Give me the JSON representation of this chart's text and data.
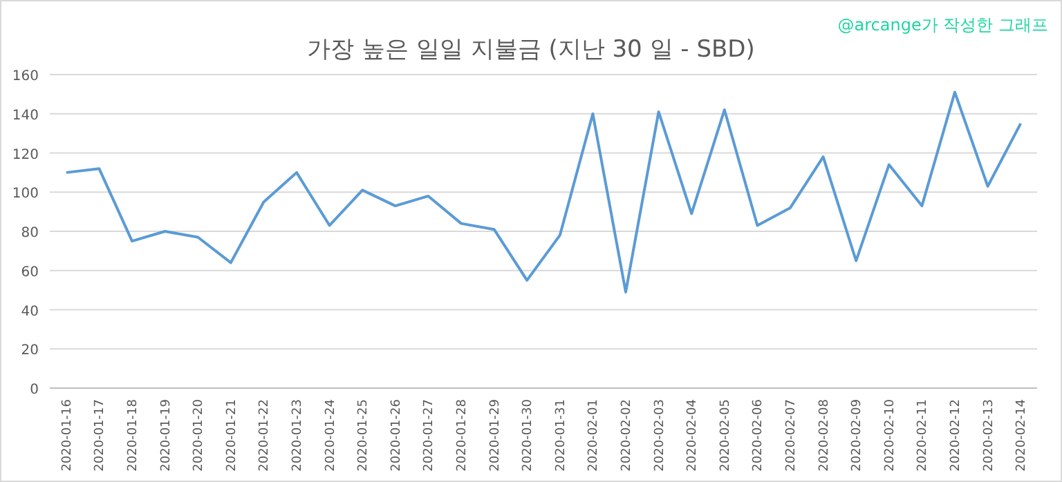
{
  "chart_data": {
    "type": "line",
    "title": "가장 높은 일일 지불금 (지난 30 일 - SBD)",
    "annotations": [
      "@arcange가 작성한 그래프"
    ],
    "categories": [
      "2020-01-16",
      "2020-01-17",
      "2020-01-18",
      "2020-01-19",
      "2020-01-20",
      "2020-01-21",
      "2020-01-22",
      "2020-01-23",
      "2020-01-24",
      "2020-01-25",
      "2020-01-26",
      "2020-01-27",
      "2020-01-28",
      "2020-01-29",
      "2020-01-30",
      "2020-01-31",
      "2020-02-01",
      "2020-02-02",
      "2020-02-03",
      "2020-02-04",
      "2020-02-05",
      "2020-02-06",
      "2020-02-07",
      "2020-02-08",
      "2020-02-09",
      "2020-02-10",
      "2020-02-11",
      "2020-02-12",
      "2020-02-13",
      "2020-02-14"
    ],
    "series": [
      {
        "color": "#5b9bd5",
        "values": [
          110,
          112,
          75,
          80,
          77,
          64,
          95,
          110,
          83,
          101,
          93,
          98,
          84,
          81,
          55,
          78,
          140,
          49,
          141,
          89,
          142,
          83,
          92,
          118,
          65,
          114,
          93,
          151,
          103,
          135
        ]
      }
    ],
    "ylim": [
      0,
      160
    ],
    "yticks": [
      0,
      20,
      40,
      60,
      80,
      100,
      120,
      140,
      160
    ],
    "grid": "y",
    "marker": "none",
    "line_style": "solid"
  }
}
